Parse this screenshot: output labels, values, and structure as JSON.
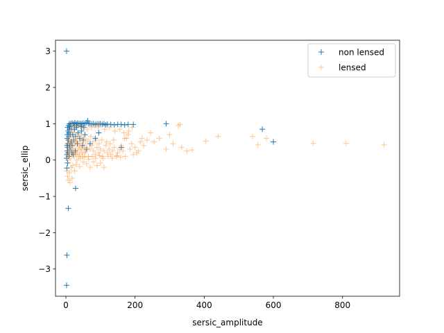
{
  "chart_data": {
    "type": "scatter",
    "xlabel": "sersic_amplitude",
    "ylabel": "sersic_ellip",
    "xlim": [
      -30,
      965
    ],
    "ylim": [
      -3.75,
      3.3
    ],
    "xticks": [
      0,
      200,
      400,
      600,
      800
    ],
    "yticks": [
      -3,
      -2,
      -1,
      0,
      1,
      2,
      3
    ],
    "ytick_labels": [
      "−3",
      "−2",
      "−1",
      "0",
      "1",
      "2",
      "3"
    ],
    "grid": false,
    "legend_position": "top-right",
    "marker": "+",
    "series": [
      {
        "name": "non lensed",
        "color": "#1f77b4",
        "points": [
          [
            2,
            3.0
          ],
          [
            2,
            -3.45
          ],
          [
            3,
            -2.62
          ],
          [
            7,
            -1.33
          ],
          [
            28,
            -0.78
          ],
          [
            3,
            -0.22
          ],
          [
            5,
            -0.08
          ],
          [
            2,
            0.05
          ],
          [
            3,
            0.15
          ],
          [
            4,
            0.25
          ],
          [
            5,
            0.35
          ],
          [
            6,
            0.45
          ],
          [
            7,
            0.55
          ],
          [
            8,
            0.65
          ],
          [
            9,
            0.75
          ],
          [
            10,
            0.85
          ],
          [
            12,
            0.92
          ],
          [
            4,
            0.6
          ],
          [
            6,
            0.8
          ],
          [
            8,
            0.95
          ],
          [
            10,
            1.0
          ],
          [
            14,
            1.0
          ],
          [
            18,
            1.02
          ],
          [
            22,
            1.0
          ],
          [
            26,
            1.03
          ],
          [
            30,
            1.0
          ],
          [
            34,
            1.02
          ],
          [
            38,
            1.0
          ],
          [
            42,
            1.01
          ],
          [
            46,
            1.0
          ],
          [
            50,
            1.02
          ],
          [
            55,
            1.0
          ],
          [
            60,
            1.03
          ],
          [
            63,
            1.08
          ],
          [
            66,
            1.0
          ],
          [
            70,
            1.0
          ],
          [
            75,
            0.99
          ],
          [
            80,
            1.0
          ],
          [
            85,
            0.98
          ],
          [
            90,
            1.0
          ],
          [
            95,
            0.99
          ],
          [
            100,
            1.0
          ],
          [
            105,
            0.98
          ],
          [
            110,
            1.0
          ],
          [
            115,
            0.97
          ],
          [
            120,
            0.99
          ],
          [
            130,
            0.98
          ],
          [
            140,
            0.97
          ],
          [
            150,
            0.98
          ],
          [
            160,
            0.98
          ],
          [
            170,
            0.97
          ],
          [
            180,
            0.98
          ],
          [
            195,
            0.98
          ],
          [
            290,
            1.0
          ],
          [
            568,
            0.85
          ],
          [
            600,
            0.5
          ],
          [
            160,
            0.35
          ],
          [
            95,
            0.75
          ],
          [
            15,
            0.5
          ],
          [
            20,
            0.7
          ],
          [
            25,
            0.85
          ],
          [
            30,
            0.9
          ],
          [
            35,
            0.75
          ],
          [
            40,
            0.6
          ],
          [
            45,
            0.8
          ],
          [
            50,
            0.55
          ],
          [
            55,
            0.7
          ],
          [
            12,
            0.3
          ],
          [
            18,
            0.4
          ],
          [
            22,
            0.55
          ],
          [
            28,
            0.65
          ],
          [
            33,
            0.45
          ],
          [
            48,
            0.4
          ],
          [
            60,
            0.3
          ],
          [
            70,
            0.45
          ],
          [
            85,
            0.6
          ],
          [
            16,
            0.85
          ],
          [
            24,
            0.95
          ],
          [
            32,
            0.95
          ],
          [
            44,
            0.92
          ],
          [
            52,
            0.9
          ],
          [
            3,
            0.4
          ],
          [
            4,
            0.7
          ],
          [
            5,
            0.9
          ],
          [
            6,
            0.2
          ],
          [
            9,
            0.1
          ],
          [
            11,
            0.4
          ],
          [
            13,
            0.7
          ],
          [
            17,
            0.2
          ],
          [
            21,
            0.15
          ],
          [
            27,
            0.25
          ]
        ]
      },
      {
        "name": "lensed",
        "color": "#ff7f0e",
        "points": [
          [
            3,
            -0.3
          ],
          [
            5,
            -0.45
          ],
          [
            8,
            -0.55
          ],
          [
            12,
            -0.62
          ],
          [
            18,
            -0.5
          ],
          [
            10,
            -0.35
          ],
          [
            15,
            -0.2
          ],
          [
            20,
            -0.15
          ],
          [
            25,
            -0.3
          ],
          [
            30,
            -0.12
          ],
          [
            40,
            -0.18
          ],
          [
            50,
            -0.05
          ],
          [
            60,
            -0.1
          ],
          [
            70,
            -0.2
          ],
          [
            80,
            -0.05
          ],
          [
            90,
            -0.15
          ],
          [
            100,
            -0.08
          ],
          [
            110,
            -0.2
          ],
          [
            5,
            0.1
          ],
          [
            10,
            0.2
          ],
          [
            15,
            0.3
          ],
          [
            20,
            0.4
          ],
          [
            25,
            0.5
          ],
          [
            30,
            0.25
          ],
          [
            35,
            0.35
          ],
          [
            40,
            0.15
          ],
          [
            45,
            0.3
          ],
          [
            50,
            0.45
          ],
          [
            55,
            0.2
          ],
          [
            60,
            0.35
          ],
          [
            65,
            0.1
          ],
          [
            70,
            0.3
          ],
          [
            75,
            0.4
          ],
          [
            80,
            0.25
          ],
          [
            85,
            0.15
          ],
          [
            90,
            0.35
          ],
          [
            95,
            0.2
          ],
          [
            100,
            0.3
          ],
          [
            105,
            0.1
          ],
          [
            110,
            0.25
          ],
          [
            115,
            0.4
          ],
          [
            120,
            0.2
          ],
          [
            125,
            0.3
          ],
          [
            130,
            0.15
          ],
          [
            135,
            0.25
          ],
          [
            140,
            0.35
          ],
          [
            145,
            0.1
          ],
          [
            150,
            0.2
          ],
          [
            155,
            0.3
          ],
          [
            160,
            0.4
          ],
          [
            165,
            0.25
          ],
          [
            170,
            0.6
          ],
          [
            175,
            0.6
          ],
          [
            180,
            0.7
          ],
          [
            185,
            0.3
          ],
          [
            190,
            0.45
          ],
          [
            200,
            0.35
          ],
          [
            210,
            0.25
          ],
          [
            215,
            0.5
          ],
          [
            220,
            0.6
          ],
          [
            225,
            0.4
          ],
          [
            235,
            0.55
          ],
          [
            245,
            0.75
          ],
          [
            255,
            0.5
          ],
          [
            270,
            0.6
          ],
          [
            290,
            0.3
          ],
          [
            300,
            0.7
          ],
          [
            310,
            0.45
          ],
          [
            325,
            0.95
          ],
          [
            335,
            0.35
          ],
          [
            350,
            0.25
          ],
          [
            365,
            0.28
          ],
          [
            405,
            0.52
          ],
          [
            440,
            0.65
          ],
          [
            540,
            0.65
          ],
          [
            555,
            0.42
          ],
          [
            580,
            0.6
          ],
          [
            715,
            0.46
          ],
          [
            810,
            0.46
          ],
          [
            920,
            0.42
          ],
          [
            8,
            0.55
          ],
          [
            12,
            0.65
          ],
          [
            16,
            0.8
          ],
          [
            22,
            0.75
          ],
          [
            28,
            0.6
          ],
          [
            34,
            0.55
          ],
          [
            38,
            0.7
          ],
          [
            44,
            0.65
          ],
          [
            52,
            0.6
          ],
          [
            58,
            0.5
          ],
          [
            64,
            0.55
          ],
          [
            72,
            0.65
          ],
          [
            78,
            0.5
          ],
          [
            88,
            0.55
          ],
          [
            96,
            0.45
          ],
          [
            104,
            0.55
          ],
          [
            118,
            0.5
          ],
          [
            128,
            0.45
          ],
          [
            138,
            0.55
          ],
          [
            6,
            0.0
          ],
          [
            14,
            0.05
          ],
          [
            24,
            0.1
          ],
          [
            32,
            0.0
          ],
          [
            42,
            0.05
          ],
          [
            54,
            0.08
          ],
          [
            66,
            0.02
          ],
          [
            76,
            0.1
          ],
          [
            86,
            0.05
          ],
          [
            98,
            0.12
          ],
          [
            108,
            0.05
          ],
          [
            122,
            0.1
          ],
          [
            134,
            0.05
          ],
          [
            148,
            0.12
          ],
          [
            158,
            0.08
          ],
          [
            172,
            0.1
          ],
          [
            195,
            0.15
          ],
          [
            205,
            0.2
          ],
          [
            18,
            0.95
          ],
          [
            26,
            0.9
          ],
          [
            36,
            0.95
          ],
          [
            48,
            0.9
          ],
          [
            62,
            0.85
          ],
          [
            74,
            0.9
          ],
          [
            84,
            0.95
          ],
          [
            94,
            0.9
          ],
          [
            98,
            1.0
          ],
          [
            112,
            0.85
          ],
          [
            126,
            0.9
          ],
          [
            142,
            0.8
          ],
          [
            156,
            0.85
          ],
          [
            168,
            0.75
          ],
          [
            182,
            0.8
          ],
          [
            192,
            0.9
          ],
          [
            330,
            0.98
          ],
          [
            4,
            0.45
          ],
          [
            7,
            0.25
          ],
          [
            9,
            0.35
          ],
          [
            11,
            0.15
          ],
          [
            13,
            0.45
          ],
          [
            17,
            0.55
          ],
          [
            19,
            0.2
          ],
          [
            23,
            0.3
          ],
          [
            27,
            0.45
          ],
          [
            29,
            0.15
          ],
          [
            31,
            0.5
          ],
          [
            33,
            0.2
          ],
          [
            37,
            0.1
          ],
          [
            39,
            0.4
          ],
          [
            41,
            0.3
          ],
          [
            43,
            0.5
          ],
          [
            47,
            0.2
          ],
          [
            49,
            0.1
          ],
          [
            53,
            0.35
          ],
          [
            57,
            0.25
          ]
        ]
      }
    ]
  }
}
